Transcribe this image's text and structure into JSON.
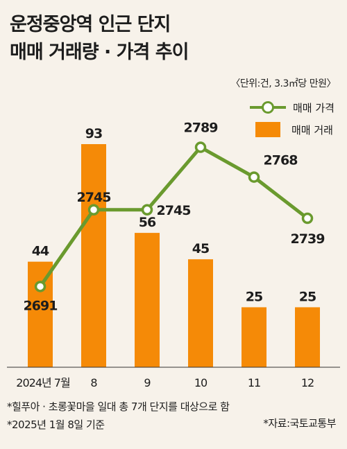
{
  "title_line1": "운정중앙역 인근 단지",
  "title_line2": "매매 거래량 · 가격 추이",
  "unit_note": "〈단위:건, 3.3㎡당 만원〉",
  "legend": {
    "price_label": "매매 가격",
    "volume_label": "매매 거래"
  },
  "colors": {
    "bar": "#f58a07",
    "line": "#6a9a2e",
    "marker_fill": "#ffffff",
    "background": "#f7f2ea"
  },
  "chart_data": {
    "type": "bar",
    "categories": [
      "2024년 7월",
      "8",
      "9",
      "10",
      "11",
      "12"
    ],
    "series": [
      {
        "name": "매매 거래",
        "type": "bar",
        "values": [
          44,
          93,
          56,
          45,
          25,
          25
        ]
      },
      {
        "name": "매매 가격",
        "type": "line",
        "values": [
          2691,
          2745,
          2745,
          2789,
          2768,
          2739
        ]
      }
    ],
    "volume_range": [
      0,
      93
    ],
    "price_range": [
      2680,
      2800
    ],
    "grid": false
  },
  "notes": {
    "line1": "*힐푸아 · 초롱꽃마을 일대 총 7개 단지를 대상으로 함",
    "line2": "*2025년 1월 8일 기준"
  },
  "source": "*자료:국토교통부"
}
